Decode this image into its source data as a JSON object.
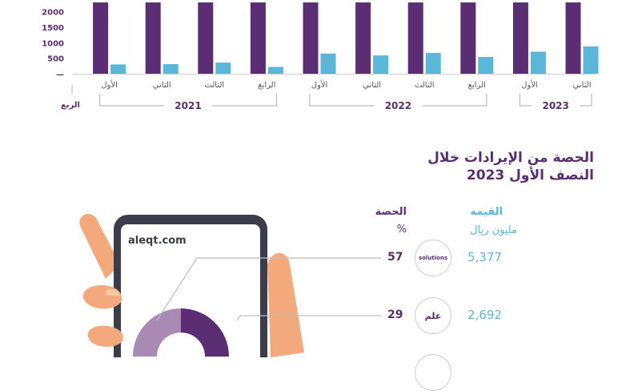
{
  "chart_data": {
    "type": "bar",
    "yticks": [
      "—",
      "500",
      "1000",
      "1500",
      "2000"
    ],
    "ylim": [
      0,
      2200
    ],
    "x_axis_name": "الربع",
    "categories": [
      "الثاني",
      "الأول",
      "الرابع",
      "الثالث",
      "الثاني",
      "الأول",
      "الرابع",
      "الثالث",
      "الثاني",
      "الأول"
    ],
    "years": [
      {
        "label": "2023",
        "span": [
          0,
          1
        ]
      },
      {
        "label": "2022",
        "span": [
          2,
          5
        ]
      },
      {
        "label": "2021",
        "span": [
          6,
          9
        ]
      }
    ],
    "series": [
      {
        "color": "#5b2d72",
        "values": [
          2300,
          2300,
          2300,
          2300,
          2300,
          2300,
          2300,
          2300,
          2300,
          2300
        ]
      },
      {
        "color": "#5ab7d8",
        "values": [
          880,
          710,
          540,
          670,
          590,
          650,
          220,
          360,
          310,
          300
        ]
      }
    ]
  },
  "revenue_section": {
    "title_line1": "الحصة من الإيرادات خلال",
    "title_line2": "النصف الأول 2023",
    "value_header": "القيمة",
    "value_unit": "مليون ريال",
    "share_header": "الحصة",
    "share_unit": "%",
    "rows": [
      {
        "share": "57",
        "value": "5,377",
        "logo": "solutions"
      },
      {
        "share": "29",
        "value": "2,692",
        "logo": "علم"
      }
    ]
  },
  "phone": {
    "url": "aleqt.com"
  },
  "donut": {
    "shares": [
      57,
      29,
      14
    ]
  },
  "colors": {
    "purple": "#5b2d72",
    "blue": "#5ab7d8",
    "lilac": "#a98ab5",
    "skin": "#f4a97d"
  }
}
